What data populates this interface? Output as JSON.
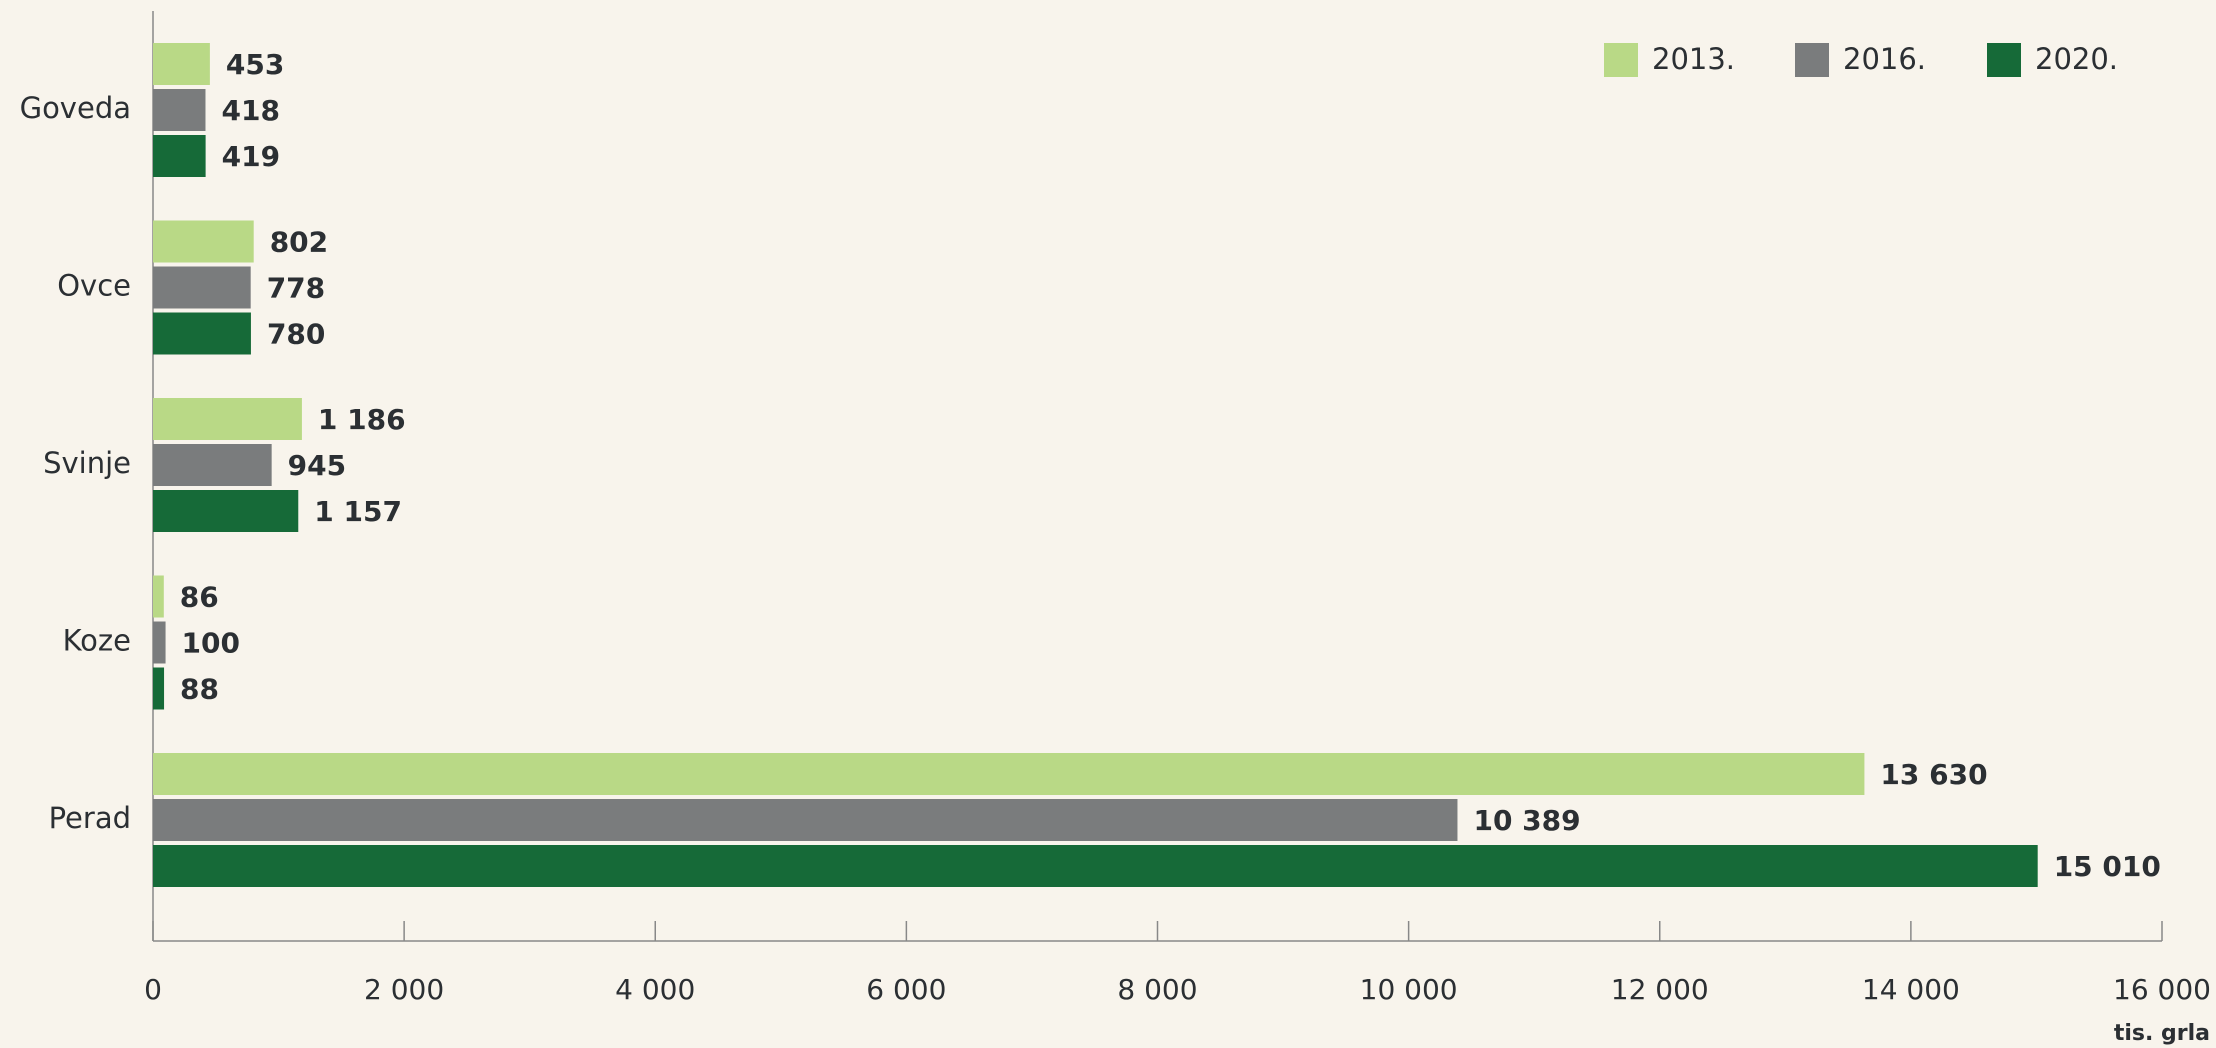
{
  "chart_data": {
    "type": "bar",
    "orientation": "horizontal",
    "categories": [
      "Goveda",
      "Ovce",
      "Svinje",
      "Koze",
      "Perad"
    ],
    "series": [
      {
        "name": "2013.",
        "color": "#b9d986",
        "values": [
          453,
          802,
          1186,
          86,
          13630
        ],
        "value_labels": [
          "453",
          "802",
          "1 186",
          "86",
          "13 630"
        ]
      },
      {
        "name": "2016.",
        "color": "#7a7c7d",
        "values": [
          418,
          778,
          945,
          100,
          10389
        ],
        "value_labels": [
          "418",
          "778",
          "945",
          "100",
          "10 389"
        ]
      },
      {
        "name": "2020.",
        "color": "#166a38",
        "values": [
          419,
          780,
          1157,
          88,
          15010
        ],
        "value_labels": [
          "419",
          "780",
          "1 157",
          "88",
          "15 010"
        ]
      }
    ],
    "xlabel": "tis. grla",
    "xlim": [
      0,
      16000
    ],
    "xticks": [
      0,
      {
        "value": 2000,
        "label": "2 000"
      },
      {
        "value": 4000,
        "label": "4 000"
      },
      {
        "value": 6000,
        "label": "6 000"
      },
      {
        "value": 8000,
        "label": "8 000"
      },
      {
        "value": 10000,
        "label": "10 000"
      },
      {
        "value": 12000,
        "label": "12 000"
      },
      {
        "value": 14000,
        "label": "14 000"
      },
      {
        "value": 16000,
        "label": "16 000"
      }
    ],
    "legend": "top-right",
    "grid": false
  }
}
